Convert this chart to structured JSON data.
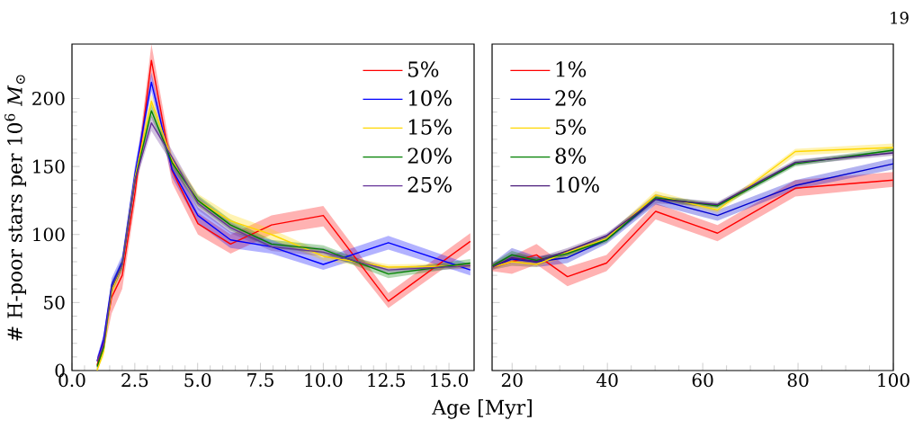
{
  "chart_data": [
    {
      "type": "line",
      "xlabel": "Age [Myr]",
      "ylabel": "# H-poor stars per 10$^{6}$ *M*$_{⊙}$",
      "legend": "top right",
      "x": [
        1,
        1.26,
        1.58,
        2,
        2.51,
        3.16,
        3.98,
        5.01,
        6.31,
        7.94,
        10,
        12.59,
        15.85
      ],
      "xlim": [
        0,
        16
      ],
      "ylim": [
        0,
        240
      ],
      "xticks": [
        {
          "value": 0,
          "label": "0.0"
        },
        {
          "value": 2.5,
          "label": "2.5"
        },
        {
          "value": 5,
          "label": "5.0"
        },
        {
          "value": 7.5,
          "label": "7.5"
        },
        {
          "value": 10,
          "label": "10.0"
        },
        {
          "value": 12.5,
          "label": "12.5"
        },
        {
          "value": 15,
          "label": "15.0"
        }
      ],
      "yticks": [
        0,
        50,
        100,
        150,
        200
      ],
      "series": [
        {
          "name": "5%",
          "color": "#ff0000",
          "values": [
            4,
            21,
            54,
            70,
            131,
            228,
            147,
            108,
            93,
            107,
            114,
            51,
            95
          ],
          "lower": [
            1,
            14,
            42,
            60,
            122,
            216,
            138,
            100,
            86,
            100,
            106,
            46,
            89
          ],
          "upper": [
            8,
            26,
            64,
            78,
            140,
            240,
            156,
            116,
            100,
            114,
            121,
            57,
            101
          ]
        },
        {
          "name": "10%",
          "color": "#0000ff",
          "values": [
            7,
            23,
            63,
            80,
            145,
            212,
            148,
            114,
            96,
            91,
            78,
            94,
            74
          ],
          "lower": [
            4,
            18,
            58,
            75,
            139,
            205,
            142,
            108,
            90,
            86,
            74,
            89,
            70
          ],
          "upper": [
            10,
            27,
            68,
            85,
            151,
            219,
            154,
            120,
            102,
            96,
            83,
            99,
            78
          ]
        },
        {
          "name": "15%",
          "color": "#ffd700",
          "values": [
            0,
            14,
            58,
            78,
            142,
            198,
            155,
            125,
            110,
            100,
            84,
            76,
            77
          ],
          "lower": [
            0,
            10,
            54,
            74,
            138,
            193,
            151,
            121,
            105,
            96,
            81,
            74,
            75
          ],
          "upper": [
            3,
            18,
            62,
            82,
            146,
            203,
            159,
            130,
            115,
            104,
            87,
            78,
            79
          ]
        },
        {
          "name": "20%",
          "color": "#008000",
          "values": [
            3,
            17,
            61,
            78,
            140,
            191,
            153,
            125,
            107,
            93,
            89,
            71,
            79
          ],
          "lower": [
            1,
            13,
            57,
            74,
            136,
            186,
            149,
            121,
            103,
            90,
            86,
            68,
            77
          ],
          "upper": [
            6,
            21,
            65,
            82,
            144,
            196,
            157,
            129,
            111,
            96,
            92,
            74,
            82
          ]
        },
        {
          "name": "25%",
          "color": "#663399",
          "values": [
            7,
            19,
            61,
            78,
            140,
            182,
            157,
            123,
            105,
            91,
            87,
            74,
            77
          ],
          "lower": [
            4,
            15,
            57,
            74,
            136,
            176,
            152,
            118,
            101,
            88,
            84,
            72,
            75
          ],
          "upper": [
            10,
            23,
            65,
            82,
            144,
            188,
            162,
            128,
            109,
            94,
            90,
            76,
            79
          ]
        }
      ]
    },
    {
      "type": "line",
      "legend": "top left",
      "tick_labels": "x",
      "annotations": [
        "19"
      ],
      "x": [
        15.85,
        19.95,
        25.12,
        31.62,
        39.81,
        50.12,
        63.1,
        79.43,
        100
      ],
      "xlim": [
        15.8,
        100
      ],
      "ylim": [
        0,
        240
      ],
      "xticks": [
        20,
        40,
        60,
        80,
        100
      ],
      "yticks": [
        0,
        50,
        100,
        150,
        200
      ],
      "series": [
        {
          "name": "1%",
          "color": "#ff0000",
          "values": [
            76,
            80,
            85,
            69,
            79,
            117,
            101,
            134,
            140
          ],
          "lower": [
            73,
            71,
            78,
            62,
            73,
            111,
            95,
            128,
            135
          ],
          "upper": [
            79,
            84,
            93,
            76,
            85,
            123,
            107,
            140,
            146
          ]
        },
        {
          "name": "2%",
          "color": "#0000cd",
          "values": [
            76,
            82,
            80,
            83,
            96,
            126,
            114,
            136,
            152
          ],
          "lower": [
            74,
            77,
            76,
            79,
            93,
            122,
            110,
            133,
            148
          ],
          "upper": [
            79,
            90,
            84,
            87,
            100,
            130,
            118,
            140,
            156
          ]
        },
        {
          "name": "5%",
          "color": "#ffd700",
          "values": [
            76,
            80,
            78,
            87,
            97,
            129,
            118,
            161,
            164
          ],
          "lower": [
            74,
            77,
            76,
            84,
            95,
            127,
            116,
            158,
            162
          ],
          "upper": [
            78,
            83,
            80,
            89,
            99,
            132,
            120,
            163,
            167
          ]
        },
        {
          "name": "8%",
          "color": "#008000",
          "values": [
            77,
            85,
            81,
            86,
            96,
            127,
            121,
            152,
            162
          ],
          "lower": [
            75,
            82,
            79,
            84,
            94,
            125,
            119,
            150,
            160
          ],
          "upper": [
            79,
            88,
            83,
            88,
            98,
            129,
            123,
            154,
            164
          ]
        },
        {
          "name": "10%",
          "color": "#4b1c7c",
          "values": [
            76,
            83,
            80,
            88,
            99,
            126,
            122,
            153,
            160
          ],
          "lower": [
            74,
            80,
            77,
            85,
            96,
            123,
            120,
            151,
            158
          ],
          "upper": [
            78,
            86,
            83,
            90,
            101,
            128,
            124,
            155,
            162
          ]
        }
      ]
    }
  ]
}
